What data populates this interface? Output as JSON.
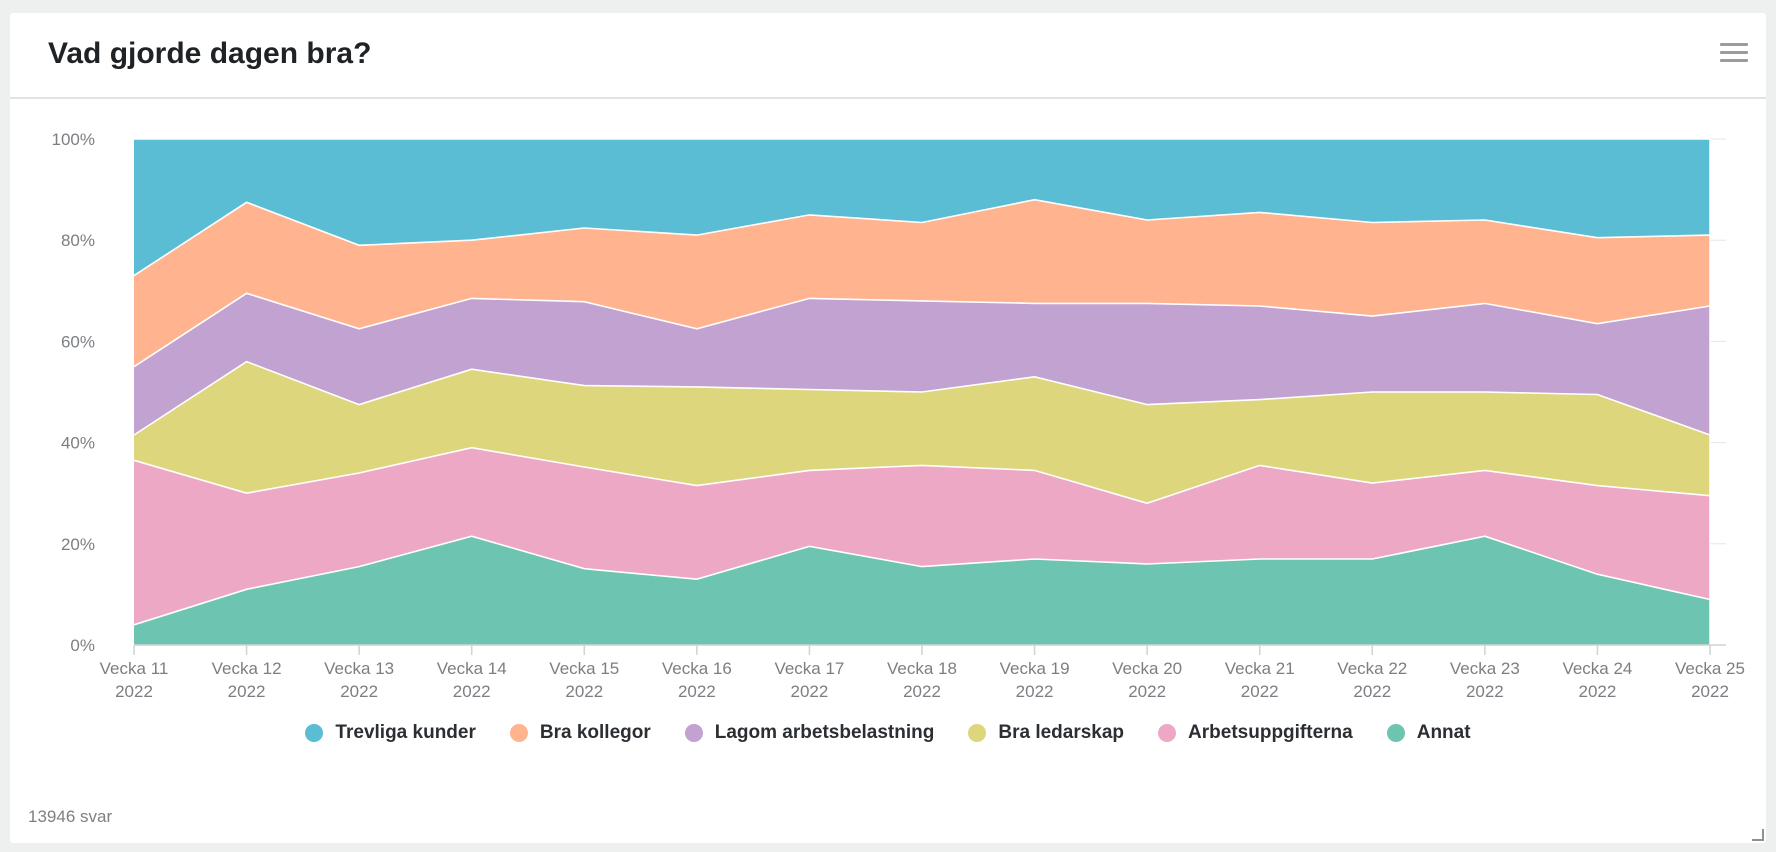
{
  "card": {
    "title": "Vad gjorde dagen bra?",
    "footer_count": "13946 svar"
  },
  "colors": {
    "trevliga": "#5bbdd4",
    "kollegor": "#ffb38e",
    "arbetsbelastning": "#c2a2d0",
    "ledarskap": "#ded67c",
    "arbetsuppgifter": "#eda8c6",
    "annat": "#6dc4b0"
  },
  "chart_data": {
    "type": "area",
    "stacking": "percent",
    "title": "Vad gjorde dagen bra?",
    "xlabel": "",
    "ylabel": "",
    "ylim": [
      0,
      100
    ],
    "yticks": [
      "0%",
      "20%",
      "40%",
      "60%",
      "80%",
      "100%"
    ],
    "categories": [
      [
        "Vecka 11",
        "2022"
      ],
      [
        "Vecka 12",
        "2022"
      ],
      [
        "Vecka 13",
        "2022"
      ],
      [
        "Vecka 14",
        "2022"
      ],
      [
        "Vecka 15",
        "2022"
      ],
      [
        "Vecka 16",
        "2022"
      ],
      [
        "Vecka 17",
        "2022"
      ],
      [
        "Vecka 18",
        "2022"
      ],
      [
        "Vecka 19",
        "2022"
      ],
      [
        "Vecka 20",
        "2022"
      ],
      [
        "Vecka 21",
        "2022"
      ],
      [
        "Vecka 22",
        "2022"
      ],
      [
        "Vecka 23",
        "2022"
      ],
      [
        "Vecka 24",
        "2022"
      ],
      [
        "Vecka 25",
        "2022"
      ]
    ],
    "legend_position": "bottom-center",
    "series": [
      {
        "name": "Annat",
        "color_key": "annat",
        "values": [
          4,
          11,
          15.5,
          21.5,
          15,
          13,
          19.5,
          15.5,
          17,
          16,
          17,
          17,
          21.5,
          14,
          9
        ]
      },
      {
        "name": "Arbetsuppgifterna",
        "color_key": "arbetsuppgifter",
        "values": [
          32.5,
          19,
          18.5,
          17.5,
          20,
          18.5,
          15,
          20,
          17.5,
          12,
          18.5,
          15,
          13,
          17.5,
          20.5
        ]
      },
      {
        "name": "Bra ledarskap",
        "color_key": "ledarskap",
        "values": [
          5,
          26,
          13.5,
          15.5,
          16,
          19.5,
          16,
          14.5,
          18.5,
          19.5,
          13,
          18,
          15.5,
          18,
          12
        ]
      },
      {
        "name": "Lagom arbetsbelastning",
        "color_key": "arbetsbelastning",
        "values": [
          13.5,
          13.5,
          15,
          14,
          16.5,
          11.5,
          18,
          18,
          14.5,
          20,
          18.5,
          15,
          17.5,
          14,
          25.5
        ]
      },
      {
        "name": "Bra kollegor",
        "color_key": "kollegor",
        "values": [
          18,
          18,
          16.5,
          11.5,
          14.5,
          18.5,
          16.5,
          15.5,
          20.5,
          16.5,
          18.5,
          18.5,
          16.5,
          17,
          14
        ]
      },
      {
        "name": "Trevliga kunder",
        "color_key": "trevliga",
        "values": [
          27,
          12.5,
          21,
          20,
          17.5,
          19,
          15,
          16.5,
          12,
          16,
          14.5,
          16.5,
          16,
          19.5,
          19
        ]
      }
    ]
  },
  "legend": {
    "items": [
      {
        "label": "Trevliga kunder",
        "color_key": "trevliga"
      },
      {
        "label": "Bra kollegor",
        "color_key": "kollegor"
      },
      {
        "label": "Lagom arbetsbelastning",
        "color_key": "arbetsbelastning"
      },
      {
        "label": "Bra ledarskap",
        "color_key": "ledarskap"
      },
      {
        "label": "Arbetsuppgifterna",
        "color_key": "arbetsuppgifter"
      },
      {
        "label": "Annat",
        "color_key": "annat"
      }
    ]
  }
}
